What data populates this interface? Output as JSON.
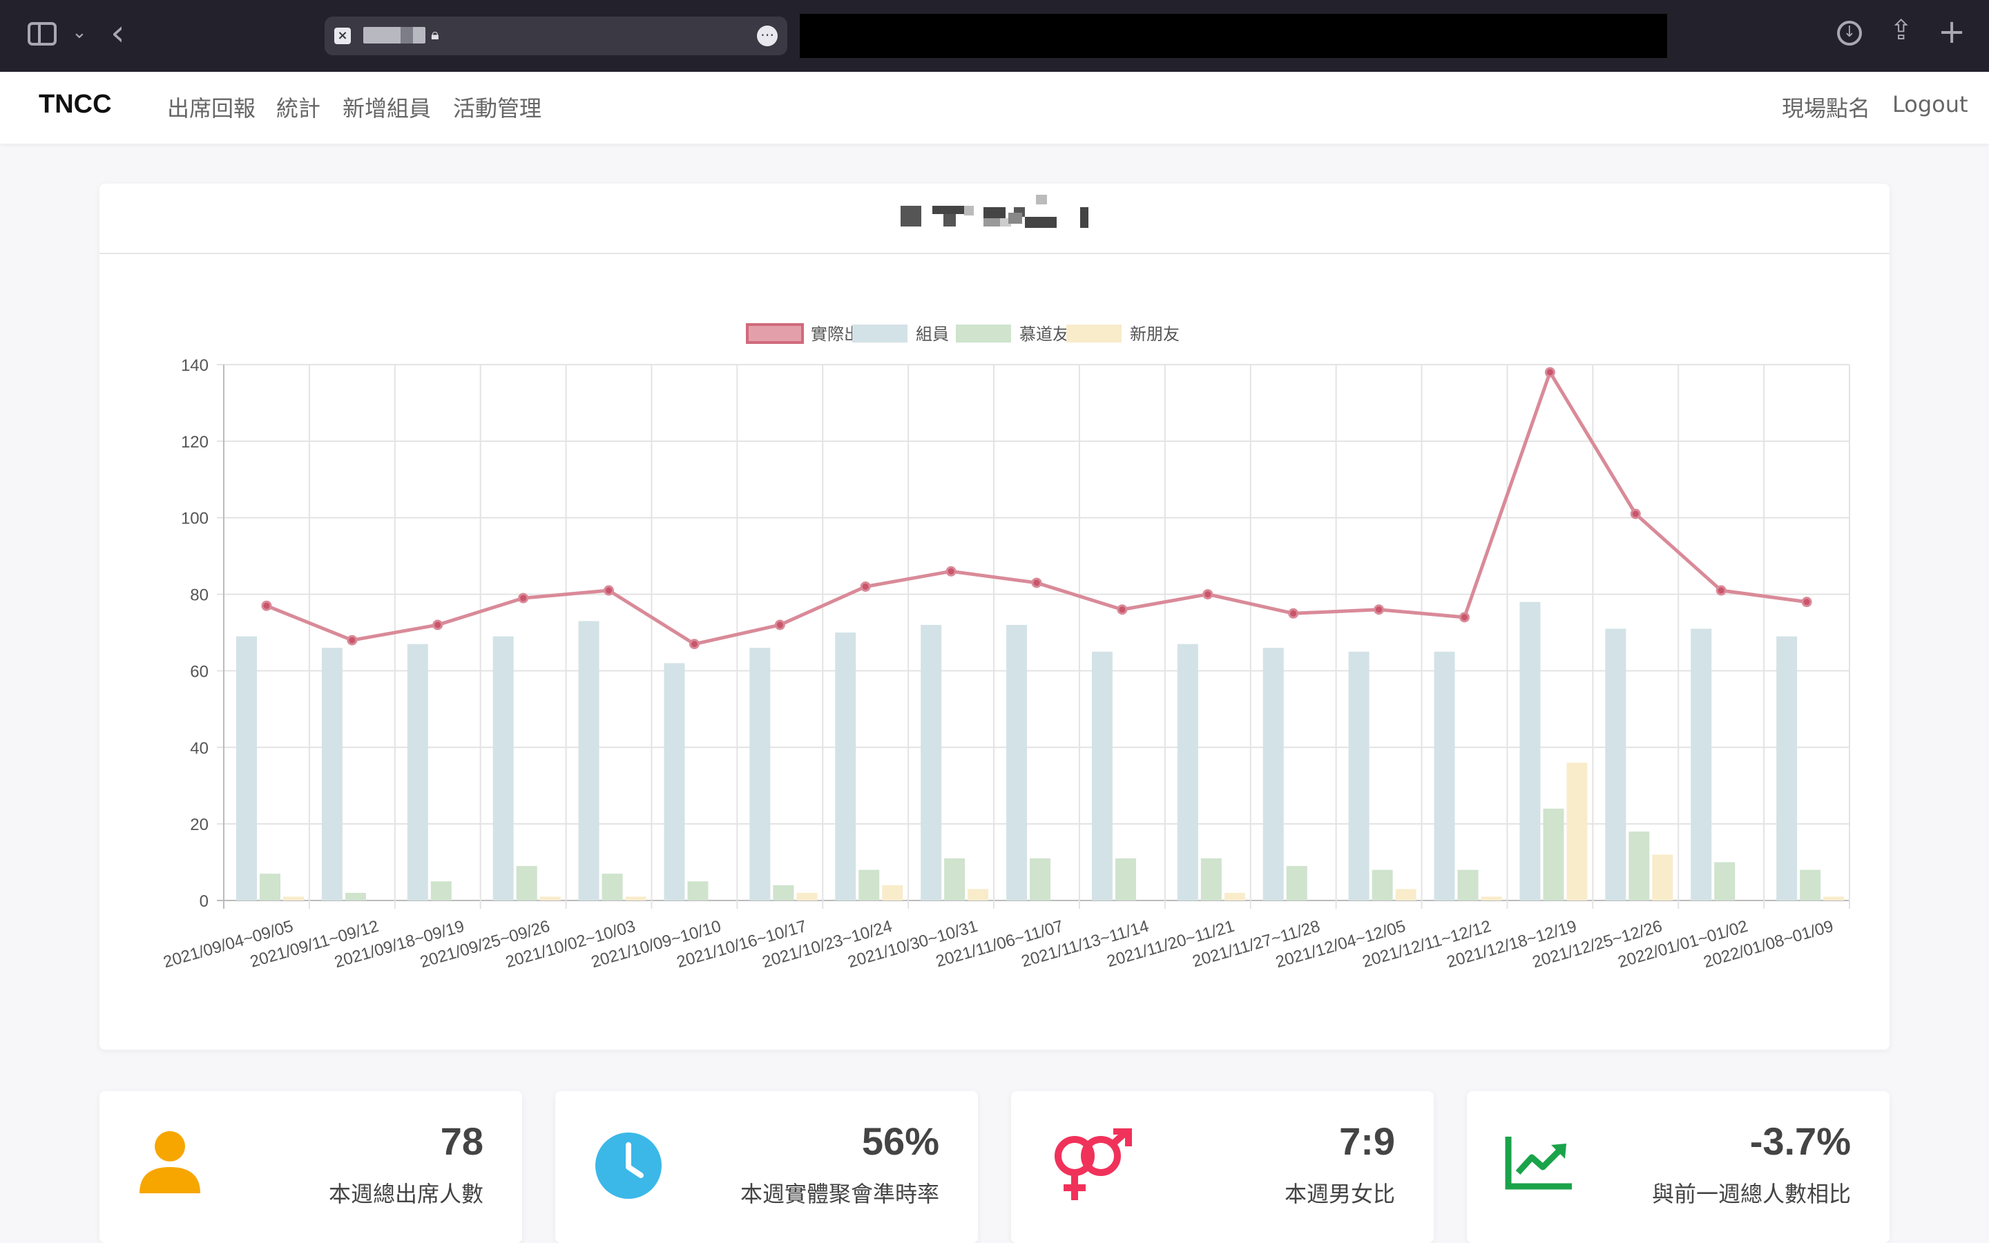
{
  "navbar": {
    "brand": "TNCC",
    "items": [
      "出席回報",
      "統計",
      "新增組員",
      "活動管理"
    ],
    "right_items": [
      "現場點名",
      "Logout"
    ]
  },
  "chart_data": {
    "type": "bar",
    "legend": [
      "實際出席",
      "組員",
      "慕道友",
      "新朋友"
    ],
    "legend_position": "top",
    "grid": true,
    "ylim": [
      0,
      140
    ],
    "yticks": [
      0,
      20,
      40,
      60,
      80,
      100,
      120,
      140
    ],
    "categories": [
      "2021/09/04~09/05",
      "2021/09/11~09/12",
      "2021/09/18~09/19",
      "2021/09/25~09/26",
      "2021/10/02~10/03",
      "2021/10/09~10/10",
      "2021/10/16~10/17",
      "2021/10/23~10/24",
      "2021/10/30~10/31",
      "2021/11/06~11/07",
      "2021/11/13~11/14",
      "2021/11/20~11/21",
      "2021/11/27~11/28",
      "2021/12/04~12/05",
      "2021/12/11~12/12",
      "2021/12/18~12/19",
      "2021/12/25~12/26",
      "2022/01/01~01/02",
      "2022/01/08~01/09"
    ],
    "series": [
      {
        "name": "實際出席",
        "type": "line",
        "color": "#d98a98",
        "values": [
          77,
          68,
          72,
          79,
          81,
          67,
          72,
          82,
          86,
          83,
          76,
          80,
          75,
          76,
          74,
          138,
          101,
          81,
          78
        ]
      },
      {
        "name": "組員",
        "type": "bar",
        "color": "#d3e2e6",
        "values": [
          69,
          66,
          67,
          69,
          73,
          62,
          66,
          70,
          72,
          72,
          65,
          67,
          66,
          65,
          65,
          78,
          71,
          71,
          69
        ]
      },
      {
        "name": "慕道友",
        "type": "bar",
        "color": "#cfe3cd",
        "values": [
          7,
          2,
          5,
          9,
          7,
          5,
          4,
          8,
          11,
          11,
          11,
          11,
          9,
          8,
          8,
          24,
          18,
          10,
          8
        ]
      },
      {
        "name": "新朋友",
        "type": "bar",
        "color": "#f8eccb",
        "values": [
          1,
          0,
          0,
          1,
          1,
          0,
          2,
          4,
          3,
          0,
          0,
          2,
          0,
          3,
          1,
          36,
          12,
          0,
          1
        ]
      }
    ]
  },
  "stats": [
    {
      "value": "78",
      "label": "本週總出席人數",
      "icon": "user-icon",
      "color": "#f7a600"
    },
    {
      "value": "56%",
      "label": "本週實體聚會準時率",
      "icon": "clock-icon",
      "color": "#3bb8e8"
    },
    {
      "value": "7:9",
      "label": "本週男女比",
      "icon": "gender-icon",
      "color": "#f0325a"
    },
    {
      "value": "-3.7%",
      "label": "與前一週總人數相比",
      "icon": "trend-up-icon",
      "color": "#1aa34a"
    }
  ]
}
